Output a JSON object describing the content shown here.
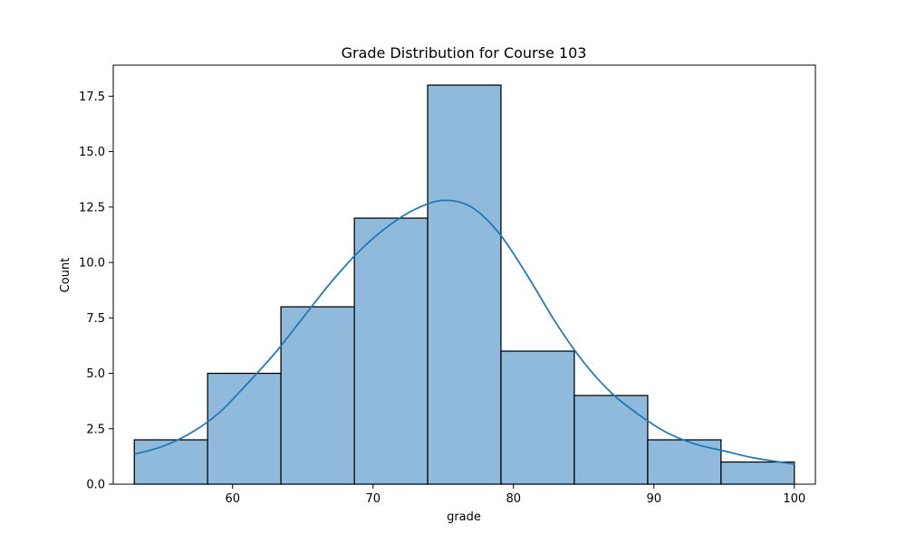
{
  "chart_data": {
    "type": "bar",
    "title": "Grade Distribution for Course 103",
    "xlabel": "grade",
    "ylabel": "Count",
    "bins": [
      {
        "start": 53.0,
        "end": 58.22,
        "count": 2
      },
      {
        "start": 58.22,
        "end": 63.44,
        "count": 5
      },
      {
        "start": 63.44,
        "end": 68.67,
        "count": 8
      },
      {
        "start": 68.67,
        "end": 73.89,
        "count": 12
      },
      {
        "start": 73.89,
        "end": 79.11,
        "count": 18
      },
      {
        "start": 79.11,
        "end": 84.33,
        "count": 6
      },
      {
        "start": 84.33,
        "end": 89.56,
        "count": 4
      },
      {
        "start": 89.56,
        "end": 94.78,
        "count": 2
      },
      {
        "start": 94.78,
        "end": 100.0,
        "count": 1
      }
    ],
    "kde": {
      "x": [
        53.0,
        55.0,
        57.0,
        59.0,
        61.0,
        63.0,
        65.0,
        67.0,
        69.0,
        71.0,
        73.0,
        75.0,
        77.0,
        79.0,
        81.0,
        83.0,
        85.0,
        87.0,
        89.0,
        91.0,
        93.0,
        95.0,
        97.0,
        100.0
      ],
      "y": [
        1.35,
        1.7,
        2.3,
        3.2,
        4.5,
        5.9,
        7.5,
        9.1,
        10.5,
        11.6,
        12.4,
        12.8,
        12.5,
        11.3,
        9.4,
        7.3,
        5.5,
        4.1,
        3.1,
        2.3,
        1.8,
        1.5,
        1.2,
        0.9
      ]
    },
    "xlim": [
      51.5,
      101.5
    ],
    "ylim": [
      0,
      18.9
    ],
    "xticks": [
      60,
      70,
      80,
      90,
      100
    ],
    "yticks": [
      0.0,
      2.5,
      5.0,
      7.5,
      10.0,
      12.5,
      15.0,
      17.5
    ],
    "yticklabels": [
      "0.0",
      "2.5",
      "5.0",
      "7.5",
      "10.0",
      "12.5",
      "15.0",
      "17.5"
    ],
    "grid": false,
    "bar_color": "#8fbadb",
    "line_color": "#1f77b4"
  }
}
